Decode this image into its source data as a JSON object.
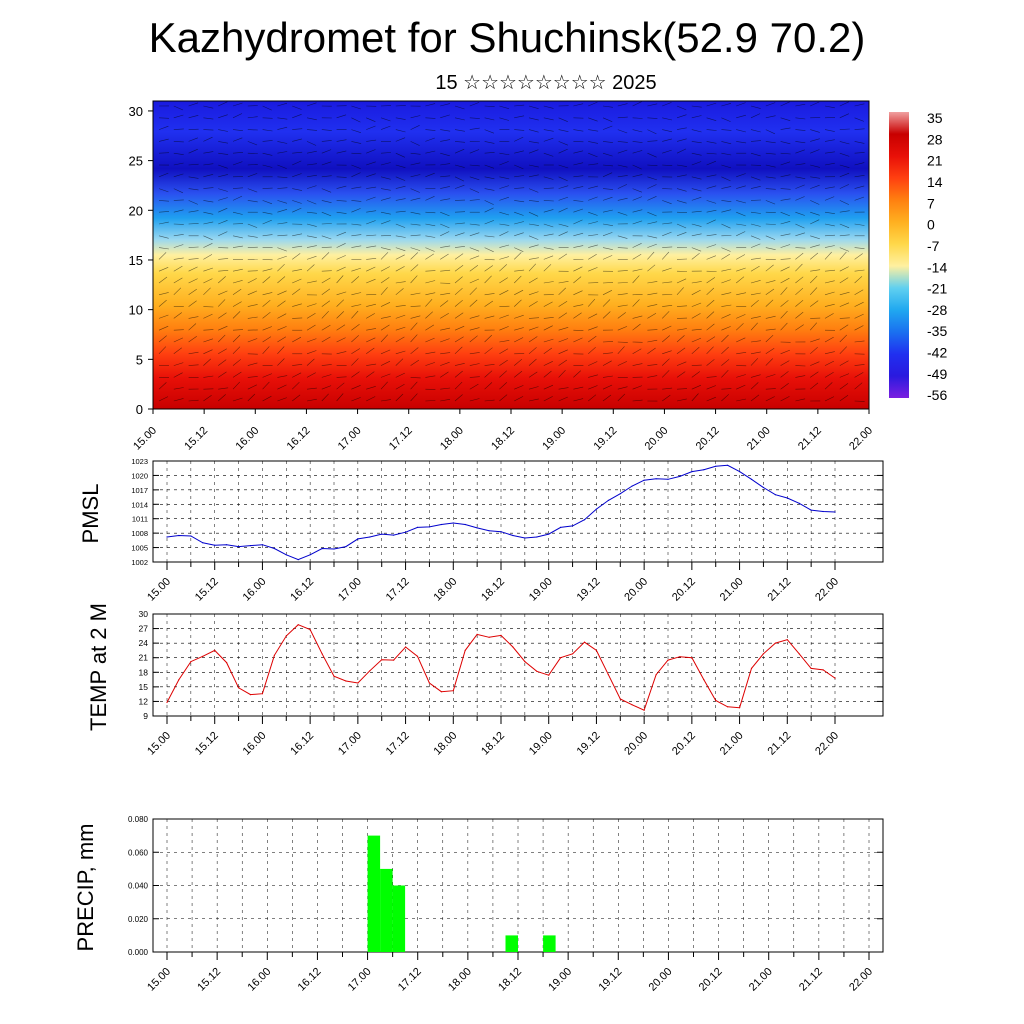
{
  "title": "Kazhydromet for Shuchinsk(52.9 70.2)",
  "subtitle": "15 ☆☆☆☆☆☆☆☆ 2025",
  "chart_data": [
    {
      "type": "heatmap",
      "name": "upper-air temperature and wind cross-section",
      "x_ticks": [
        "15.00",
        "15.12",
        "16.00",
        "16.12",
        "17.00",
        "17.12",
        "18.00",
        "18.12",
        "19.00",
        "19.12",
        "20.00",
        "20.12",
        "21.00",
        "21.12",
        "22.00"
      ],
      "y_ticks": [
        "0",
        "5",
        "10",
        "15",
        "20",
        "25",
        "30"
      ],
      "ylim": [
        0,
        31
      ],
      "colorbar_labels": [
        "35",
        "28",
        "21",
        "14",
        "7",
        "0",
        "-7",
        "-14",
        "-21",
        "-28",
        "-35",
        "-42",
        "-49",
        "-56"
      ],
      "colormap": [
        "#7a1fe0",
        "#2a1adf",
        "#2030f0",
        "#1a70f0",
        "#20a8f0",
        "#60d0f0",
        "#fff0a0",
        "#ffd84a",
        "#ffb020",
        "#ff8010",
        "#ff4010",
        "#e81008",
        "#c80000",
        "#f0a0a0"
      ]
    },
    {
      "type": "line",
      "ylabel": "PMSL",
      "y_ticks": [
        "1002",
        "1005",
        "1008",
        "1011",
        "1014",
        "1017",
        "1020",
        "1023"
      ],
      "ylim": [
        1002,
        1023
      ],
      "line_color": "#0000cc",
      "x": [
        0,
        3,
        6,
        9,
        12,
        15,
        18,
        21,
        24,
        27,
        30,
        33,
        36,
        39,
        42,
        45,
        48,
        51,
        54,
        57,
        60,
        63,
        66,
        69,
        72,
        75,
        78,
        81,
        84,
        87,
        90,
        93,
        96,
        99,
        102,
        105,
        108,
        111,
        114,
        117,
        120,
        123,
        126,
        129,
        132,
        135,
        138,
        141,
        144,
        147,
        150,
        153,
        156,
        159,
        162,
        165,
        168
      ],
      "values": [
        1007.2,
        1007.5,
        1007.4,
        1006,
        1005.5,
        1005.6,
        1005.2,
        1005.4,
        1005.6,
        1004.8,
        1003.5,
        1002.5,
        1003.5,
        1004.8,
        1004.7,
        1005.2,
        1006.8,
        1007.2,
        1007.8,
        1007.6,
        1008.2,
        1009.2,
        1009.3,
        1009.8,
        1010.1,
        1009.8,
        1009.1,
        1008.5,
        1008.3,
        1007.5,
        1007,
        1007.2,
        1007.8,
        1009.2,
        1009.5,
        1010.8,
        1013,
        1014.8,
        1016.2,
        1017.8,
        1019,
        1019.3,
        1019.2,
        1019.8,
        1020.8,
        1021.2,
        1021.9,
        1022.1,
        1020.8,
        1019.2,
        1017.5,
        1016,
        1015.3,
        1014.2,
        1012.8,
        1012.5,
        1012.4
      ]
    },
    {
      "type": "line",
      "ylabel": "TEMP at 2 M",
      "y_ticks": [
        "9",
        "12",
        "15",
        "18",
        "21",
        "24",
        "27",
        "30"
      ],
      "ylim": [
        9,
        30
      ],
      "line_color": "#dd0000",
      "x": [
        0,
        3,
        6,
        9,
        12,
        15,
        18,
        21,
        24,
        27,
        30,
        33,
        36,
        39,
        42,
        45,
        48,
        51,
        54,
        57,
        60,
        63,
        66,
        69,
        72,
        75,
        78,
        81,
        84,
        87,
        90,
        93,
        96,
        99,
        102,
        105,
        108,
        111,
        114,
        117,
        120,
        123,
        126,
        129,
        132,
        135,
        138,
        141,
        144,
        147,
        150,
        153,
        156,
        159,
        162,
        165,
        168
      ],
      "values": [
        11.8,
        16.5,
        20.2,
        21.3,
        22.5,
        20,
        14.8,
        13.4,
        13.6,
        21.5,
        25.5,
        27.8,
        26.8,
        21.8,
        17.2,
        16.2,
        15.8,
        18.3,
        20.6,
        20.5,
        23.2,
        21.3,
        15.8,
        14,
        14.2,
        22.5,
        25.8,
        25.2,
        25.6,
        23.2,
        20.2,
        18.2,
        17.4,
        21,
        21.8,
        24.2,
        22.5,
        17.5,
        12.5,
        11.3,
        10.2,
        17.5,
        20.5,
        21.2,
        21,
        16.5,
        12.2,
        10.9,
        10.7,
        18.8,
        21.8,
        24,
        24.7,
        21.8,
        18.8,
        18.5,
        16.8
      ]
    },
    {
      "type": "bar",
      "ylabel": "PRECIP, mm",
      "y_ticks": [
        "0.000",
        "0.020",
        "0.040",
        "0.060",
        "0.080"
      ],
      "ylim": [
        0,
        0.08
      ],
      "bar_color": "#00ff00",
      "x": [
        48,
        51,
        54,
        81,
        90
      ],
      "values": [
        0.07,
        0.05,
        0.04,
        0.01,
        0.01
      ]
    }
  ]
}
